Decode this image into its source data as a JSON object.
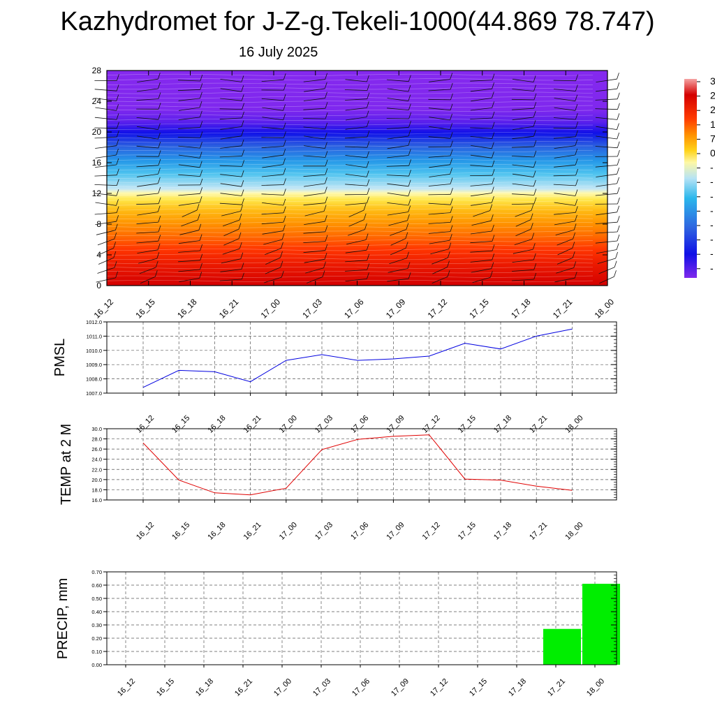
{
  "title": "Kazhydromet for J-Z-g.Tekeli-1000(44.869 78.747)",
  "subtitle": "16 July 2025",
  "colorbar": {
    "labels": [
      "3",
      "2",
      "2",
      "1",
      "7",
      "0",
      "-",
      "-",
      "-",
      "-",
      "-",
      "-",
      "-",
      "-"
    ],
    "colors": [
      "#f5a3a3",
      "#d40000",
      "#ff3b00",
      "#ff9000",
      "#ffd31a",
      "#fdf8a6",
      "#b6e3f5",
      "#2bb7ec",
      "#2e63e0",
      "#1010e6",
      "#8029ec"
    ]
  },
  "chart_data": [
    {
      "type": "heatmap",
      "description": "Temperature profile (filled contours) with wind barbs",
      "x": [
        "16_12",
        "16_15",
        "16_18",
        "16_21",
        "17_00",
        "17_03",
        "17_06",
        "17_09",
        "17_12",
        "17_15",
        "17_18",
        "17_21",
        "18_00"
      ],
      "ylim": [
        0,
        28
      ],
      "yticks": [
        0,
        4,
        8,
        12,
        16,
        20,
        24,
        28
      ],
      "grid": false
    },
    {
      "type": "line",
      "ylabel": "PMSL",
      "x": [
        "16_12",
        "16_15",
        "16_18",
        "16_21",
        "17_00",
        "17_03",
        "17_06",
        "17_09",
        "17_12",
        "17_15",
        "17_18",
        "17_21",
        "18_00"
      ],
      "values": [
        1007.4,
        1008.6,
        1008.5,
        1007.8,
        1009.3,
        1009.7,
        1009.3,
        1009.4,
        1009.6,
        1010.5,
        1010.1,
        1011.0,
        1011.5
      ],
      "ylim": [
        1007.0,
        1012.0
      ],
      "yticks": [
        "1007.0",
        "1008.0",
        "1009.0",
        "1010.0",
        "1011.0",
        "1012.0"
      ],
      "color": "#0000e0",
      "grid": true
    },
    {
      "type": "line",
      "ylabel": "TEMP at 2 M",
      "x": [
        "16_12",
        "16_15",
        "16_18",
        "16_21",
        "17_00",
        "17_03",
        "17_06",
        "17_09",
        "17_12",
        "17_15",
        "17_18",
        "17_21",
        "18_00"
      ],
      "values": [
        27.2,
        19.9,
        17.4,
        17.0,
        18.3,
        25.9,
        27.9,
        28.5,
        28.8,
        20.1,
        19.9,
        18.7,
        17.9
      ],
      "ylim": [
        16.0,
        30.0
      ],
      "yticks": [
        "16.0",
        "18.0",
        "20.0",
        "22.0",
        "24.0",
        "26.0",
        "28.0",
        "30.0"
      ],
      "color": "#e00000",
      "grid": true
    },
    {
      "type": "bar",
      "ylabel": "PRECIP, mm",
      "categories": [
        "16_12",
        "16_15",
        "16_18",
        "16_21",
        "17_00",
        "17_03",
        "17_06",
        "17_09",
        "17_12",
        "17_15",
        "17_18",
        "17_21",
        "18_00"
      ],
      "values": [
        0,
        0,
        0,
        0,
        0,
        0,
        0,
        0,
        0,
        0,
        0,
        0.27,
        0.61
      ],
      "ylim": [
        0,
        0.7
      ],
      "yticks": [
        "0.00",
        "0.10",
        "0.20",
        "0.30",
        "0.40",
        "0.50",
        "0.60",
        "0.70"
      ],
      "color": "#00ee00",
      "grid": true
    }
  ]
}
